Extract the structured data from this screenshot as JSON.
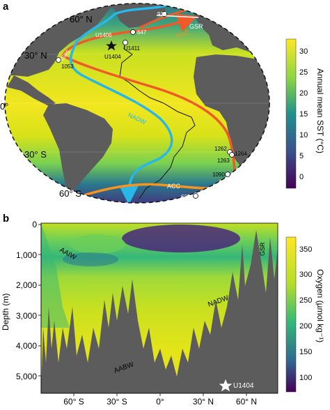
{
  "panel_a": {
    "letter": "a",
    "lat_labels": [
      "60° N",
      "30° N",
      "0°",
      "30° S",
      "60° S"
    ],
    "currents": [
      "GSR",
      "NAC",
      "ASP5",
      "NADW",
      "ACC"
    ],
    "sites": [
      "913",
      "U1406",
      "647",
      "U1411",
      "U1404",
      "1053",
      "1262",
      "1264",
      "1263",
      "1090",
      "689"
    ],
    "colorbar": {
      "title": "Annual mean SST (°C)",
      "ticks": [
        "30",
        "25",
        "20",
        "15",
        "10",
        "5",
        "0"
      ]
    }
  },
  "panel_b": {
    "letter": "b",
    "y_axis_label": "Depth (m)",
    "y_ticks": [
      "0",
      "1,000",
      "2,000",
      "3,000",
      "4,000",
      "5,000"
    ],
    "x_ticks": [
      "60° S",
      "30° S",
      "0°",
      "30° N",
      "60° N"
    ],
    "water_masses": [
      "AAIW",
      "NADW",
      "AABW",
      "GSR"
    ],
    "site_label": "U1404",
    "colorbar": {
      "title": "Oxygen (µmol kg⁻¹)",
      "ticks": [
        "350",
        "300",
        "250",
        "200",
        "150",
        "100"
      ]
    }
  },
  "colors": {
    "land": "#5c5c5c",
    "warm_current": "#f05a28",
    "cold_current": "#29b6e8",
    "acc_current": "#f7941d",
    "viridis_low": "#440154",
    "viridis_high": "#fde725"
  }
}
